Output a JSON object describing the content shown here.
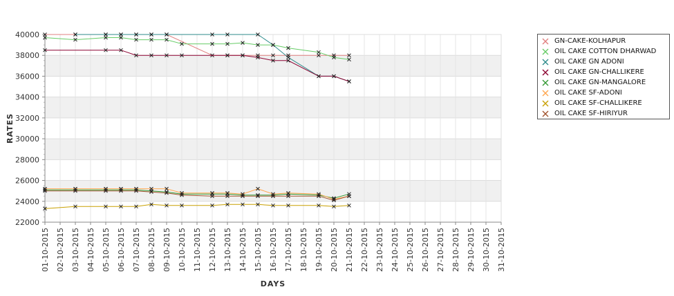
{
  "chart_data": {
    "type": "line",
    "title": "",
    "xlabel": "DAYS",
    "ylabel": "RATES",
    "ylim": [
      22000,
      40000
    ],
    "grid": true,
    "legend_placement": "right",
    "y_ticks": [
      "22000",
      "24000",
      "26000",
      "28000",
      "30000",
      "32000",
      "34000",
      "36000",
      "38000",
      "40000"
    ],
    "categories": [
      "01-10-2015",
      "02-10-2015",
      "03-10-2015",
      "04-10-2015",
      "05-10-2015",
      "06-10-2015",
      "07-10-2015",
      "08-10-2015",
      "09-10-2015",
      "10-10-2015",
      "11-10-2015",
      "12-10-2015",
      "13-10-2015",
      "14-10-2015",
      "15-10-2015",
      "16-10-2015",
      "17-10-2015",
      "18-10-2015",
      "19-10-2015",
      "20-10-2015",
      "21-10-2015",
      "22-10-2015",
      "23-10-2015",
      "24-10-2015",
      "25-10-2015",
      "26-10-2015",
      "27-10-2015",
      "28-10-2015",
      "29-10-2015",
      "30-10-2015",
      "31-10-2015"
    ],
    "series": [
      {
        "name": "GN-CAKE-KOLHAPUR",
        "color": "#e08080",
        "points": [
          [
            "01-10-2015",
            40000
          ],
          [
            "03-10-2015",
            40000
          ],
          [
            "05-10-2015",
            40000
          ],
          [
            "06-10-2015",
            40000
          ],
          [
            "07-10-2015",
            40000
          ],
          [
            "08-10-2015",
            40000
          ],
          [
            "09-10-2015",
            40000
          ],
          [
            "12-10-2015",
            38000
          ],
          [
            "13-10-2015",
            38000
          ],
          [
            "14-10-2015",
            38000
          ],
          [
            "15-10-2015",
            38000
          ],
          [
            "16-10-2015",
            38000
          ],
          [
            "17-10-2015",
            38000
          ],
          [
            "19-10-2015",
            38000
          ],
          [
            "20-10-2015",
            38000
          ],
          [
            "21-10-2015",
            38000
          ]
        ]
      },
      {
        "name": "OIL CAKE COTTON DHARWAD",
        "color": "#66cc66",
        "points": [
          [
            "01-10-2015",
            39700
          ],
          [
            "03-10-2015",
            39500
          ],
          [
            "05-10-2015",
            39700
          ],
          [
            "06-10-2015",
            39700
          ],
          [
            "07-10-2015",
            39500
          ],
          [
            "08-10-2015",
            39500
          ],
          [
            "09-10-2015",
            39500
          ],
          [
            "10-10-2015",
            39100
          ],
          [
            "12-10-2015",
            39100
          ],
          [
            "13-10-2015",
            39100
          ],
          [
            "14-10-2015",
            39200
          ],
          [
            "15-10-2015",
            39000
          ],
          [
            "16-10-2015",
            39000
          ],
          [
            "17-10-2015",
            38700
          ],
          [
            "19-10-2015",
            38300
          ],
          [
            "20-10-2015",
            37800
          ],
          [
            "21-10-2015",
            37600
          ]
        ]
      },
      {
        "name": "OIL CAKE GN ADONI",
        "color": "#2e8b8b",
        "points": [
          [
            "03-10-2015",
            40000
          ],
          [
            "05-10-2015",
            40000
          ],
          [
            "06-10-2015",
            40000
          ],
          [
            "07-10-2015",
            40000
          ],
          [
            "08-10-2015",
            40000
          ],
          [
            "09-10-2015",
            40000
          ],
          [
            "12-10-2015",
            40000
          ],
          [
            "13-10-2015",
            40000
          ],
          [
            "15-10-2015",
            40000
          ],
          [
            "16-10-2015",
            39000
          ],
          [
            "17-10-2015",
            37800
          ],
          [
            "19-10-2015",
            36000
          ],
          [
            "20-10-2015",
            36000
          ],
          [
            "21-10-2015",
            35500
          ]
        ]
      },
      {
        "name": "OIL CAKE GN-CHALLIKERE",
        "color": "#8b0030",
        "points": [
          [
            "01-10-2015",
            38500
          ],
          [
            "05-10-2015",
            38500
          ],
          [
            "06-10-2015",
            38500
          ],
          [
            "07-10-2015",
            38000
          ],
          [
            "08-10-2015",
            38000
          ],
          [
            "09-10-2015",
            38000
          ],
          [
            "10-10-2015",
            38000
          ],
          [
            "13-10-2015",
            38000
          ],
          [
            "14-10-2015",
            38000
          ],
          [
            "15-10-2015",
            37800
          ],
          [
            "16-10-2015",
            37500
          ],
          [
            "17-10-2015",
            37500
          ],
          [
            "19-10-2015",
            36000
          ],
          [
            "20-10-2015",
            36000
          ],
          [
            "21-10-2015",
            35500
          ]
        ]
      },
      {
        "name": "OIL CAKE GN-MANGALORE",
        "color": "#339933",
        "points": [
          [
            "01-10-2015",
            25100
          ],
          [
            "03-10-2015",
            25100
          ],
          [
            "05-10-2015",
            25100
          ],
          [
            "06-10-2015",
            25100
          ],
          [
            "07-10-2015",
            25100
          ],
          [
            "08-10-2015",
            25000
          ],
          [
            "09-10-2015",
            24900
          ],
          [
            "10-10-2015",
            24700
          ],
          [
            "12-10-2015",
            24700
          ],
          [
            "13-10-2015",
            24700
          ],
          [
            "14-10-2015",
            24600
          ],
          [
            "15-10-2015",
            24600
          ],
          [
            "16-10-2015",
            24600
          ],
          [
            "17-10-2015",
            24700
          ],
          [
            "19-10-2015",
            24600
          ],
          [
            "20-10-2015",
            24300
          ],
          [
            "21-10-2015",
            24700
          ]
        ]
      },
      {
        "name": "OIL CAKE SF-ADONI",
        "color": "#ffa64d",
        "points": [
          [
            "01-10-2015",
            25200
          ],
          [
            "03-10-2015",
            25200
          ],
          [
            "05-10-2015",
            25200
          ],
          [
            "06-10-2015",
            25200
          ],
          [
            "07-10-2015",
            25200
          ],
          [
            "08-10-2015",
            25200
          ],
          [
            "09-10-2015",
            25200
          ],
          [
            "10-10-2015",
            24800
          ],
          [
            "12-10-2015",
            24800
          ],
          [
            "13-10-2015",
            24800
          ],
          [
            "14-10-2015",
            24700
          ],
          [
            "15-10-2015",
            25200
          ],
          [
            "16-10-2015",
            24700
          ],
          [
            "17-10-2015",
            24800
          ],
          [
            "19-10-2015",
            24700
          ],
          [
            "20-10-2015",
            24200
          ],
          [
            "21-10-2015",
            24500
          ]
        ]
      },
      {
        "name": "OIL CAKE SF-CHALLIKERE",
        "color": "#c8a000",
        "points": [
          [
            "01-10-2015",
            23300
          ],
          [
            "03-10-2015",
            23500
          ],
          [
            "05-10-2015",
            23500
          ],
          [
            "06-10-2015",
            23500
          ],
          [
            "07-10-2015",
            23500
          ],
          [
            "08-10-2015",
            23700
          ],
          [
            "09-10-2015",
            23600
          ],
          [
            "10-10-2015",
            23600
          ],
          [
            "12-10-2015",
            23600
          ],
          [
            "13-10-2015",
            23700
          ],
          [
            "14-10-2015",
            23700
          ],
          [
            "15-10-2015",
            23700
          ],
          [
            "16-10-2015",
            23600
          ],
          [
            "17-10-2015",
            23600
          ],
          [
            "19-10-2015",
            23600
          ],
          [
            "20-10-2015",
            23500
          ],
          [
            "21-10-2015",
            23600
          ]
        ]
      },
      {
        "name": "OIL CAKE SF-HIRIYUR",
        "color": "#a0522d",
        "points": [
          [
            "01-10-2015",
            25000
          ],
          [
            "03-10-2015",
            25000
          ],
          [
            "05-10-2015",
            25000
          ],
          [
            "06-10-2015",
            25000
          ],
          [
            "07-10-2015",
            25000
          ],
          [
            "08-10-2015",
            24900
          ],
          [
            "09-10-2015",
            24800
          ],
          [
            "10-10-2015",
            24600
          ],
          [
            "12-10-2015",
            24500
          ],
          [
            "13-10-2015",
            24500
          ],
          [
            "14-10-2015",
            24500
          ],
          [
            "15-10-2015",
            24500
          ],
          [
            "16-10-2015",
            24500
          ],
          [
            "17-10-2015",
            24500
          ],
          [
            "19-10-2015",
            24500
          ],
          [
            "20-10-2015",
            24100
          ],
          [
            "21-10-2015",
            24500
          ]
        ]
      }
    ]
  }
}
